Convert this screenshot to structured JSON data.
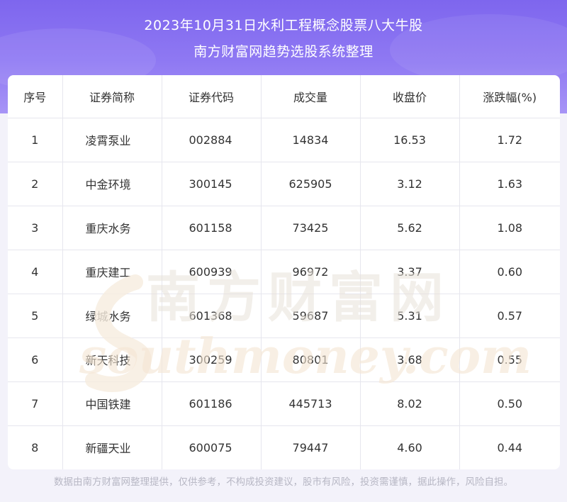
{
  "header": {
    "title_line1": "2023年10月31日水利工程概念股票八大牛股",
    "title_line2": "南方财富网趋势选股系统整理"
  },
  "table": {
    "columns": [
      "序号",
      "证券简称",
      "证券代码",
      "成交量",
      "收盘价",
      "涨跌幅(%)"
    ],
    "rows": [
      {
        "idx": "1",
        "name": "凌霄泵业",
        "code": "002884",
        "volume": "14834",
        "close": "16.53",
        "change": "1.72"
      },
      {
        "idx": "2",
        "name": "中金环境",
        "code": "300145",
        "volume": "625905",
        "close": "3.12",
        "change": "1.63"
      },
      {
        "idx": "3",
        "name": "重庆水务",
        "code": "601158",
        "volume": "73425",
        "close": "5.62",
        "change": "1.08"
      },
      {
        "idx": "4",
        "name": "重庆建工",
        "code": "600939",
        "volume": "96972",
        "close": "3.37",
        "change": "0.60"
      },
      {
        "idx": "5",
        "name": "绿城水务",
        "code": "601368",
        "volume": "59687",
        "close": "5.31",
        "change": "0.57"
      },
      {
        "idx": "6",
        "name": "新天科技",
        "code": "300259",
        "volume": "80801",
        "close": "3.68",
        "change": "0.55"
      },
      {
        "idx": "7",
        "name": "中国铁建",
        "code": "601186",
        "volume": "445713",
        "close": "8.02",
        "change": "0.50"
      },
      {
        "idx": "8",
        "name": "新疆天业",
        "code": "600075",
        "volume": "79447",
        "close": "4.60",
        "change": "0.44"
      }
    ]
  },
  "watermark": {
    "cn": "南方财富网",
    "en": "southmoney.com"
  },
  "footer": {
    "disclaimer": "数据由南方财富网整理提供，仅供参考，不构成投资建议，股市有风险，投资需谨慎，据此操作，风险自担。"
  },
  "colors": {
    "header_top": "#7e66ee",
    "header_bottom": "#a794f6",
    "watermark": "#f3e7d7"
  }
}
